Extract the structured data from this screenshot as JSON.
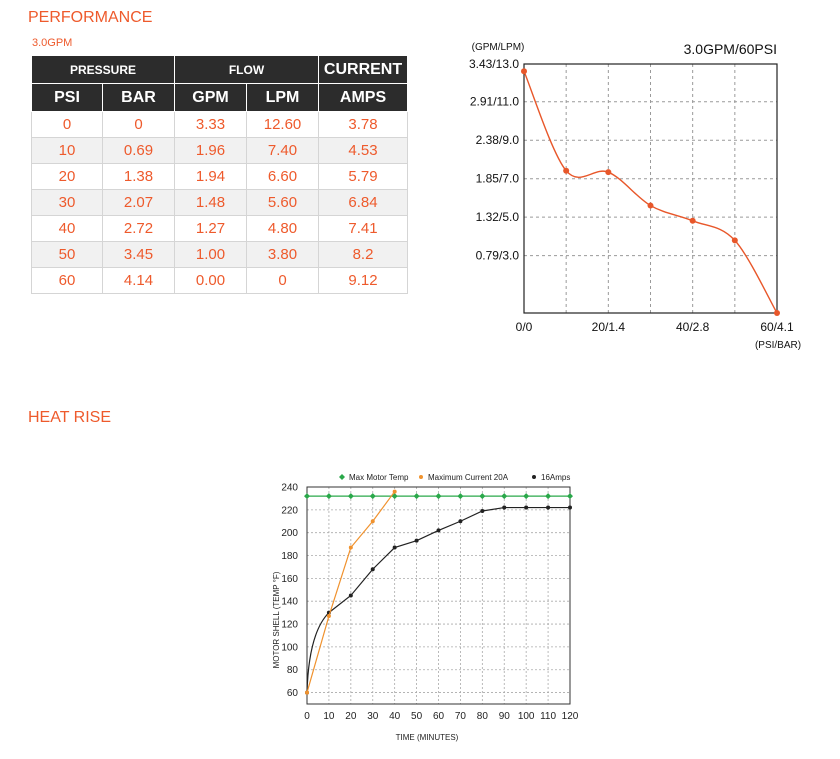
{
  "performance": {
    "heading": "PERFORMANCE",
    "subtitle": "3.0GPM",
    "table": {
      "group_headers": [
        "PRESSURE",
        "FLOW",
        "CURRENT"
      ],
      "columns": [
        "PSI",
        "BAR",
        "GPM",
        "LPM",
        "AMPS"
      ],
      "rows": [
        [
          "0",
          "0",
          "3.33",
          "12.60",
          "3.78"
        ],
        [
          "10",
          "0.69",
          "1.96",
          "7.40",
          "4.53"
        ],
        [
          "20",
          "1.38",
          "1.94",
          "6.60",
          "5.79"
        ],
        [
          "30",
          "2.07",
          "1.48",
          "5.60",
          "6.84"
        ],
        [
          "40",
          "2.72",
          "1.27",
          "4.80",
          "7.41"
        ],
        [
          "50",
          "3.45",
          "1.00",
          "3.80",
          "8.2"
        ],
        [
          "60",
          "4.14",
          "0.00",
          "0",
          "9.12"
        ]
      ]
    }
  },
  "heat_rise": {
    "heading": "HEAT RISE"
  },
  "chart_data": [
    {
      "type": "line",
      "title": "3.0GPM/60PSI",
      "ylabel": "(GPM/LPM)",
      "xlabel": "(PSI/BAR)",
      "x_ticks": [
        "0/0",
        "20/1.4",
        "40/2.8",
        "60/4.1"
      ],
      "y_ticks": [
        "0.79/3.0",
        "1.32/5.0",
        "1.85/7.0",
        "2.38/9.0",
        "2.91/11.0",
        "3.43/13.0"
      ],
      "xlim": [
        0,
        60
      ],
      "ylim": [
        0,
        3.43
      ],
      "grid": true,
      "line_color": "#e8572a",
      "series": [
        {
          "x": [
            0,
            10,
            20,
            30,
            40,
            50,
            60
          ],
          "y": [
            3.33,
            1.96,
            1.94,
            1.48,
            1.27,
            1.0,
            0.0
          ]
        }
      ]
    },
    {
      "type": "line",
      "xlabel": "TIME (MINUTES)",
      "ylabel": "MOTOR SHELL (TEMP °F)",
      "xlim": [
        0,
        120
      ],
      "ylim": [
        50,
        240
      ],
      "x_ticks": [
        0,
        10,
        20,
        30,
        40,
        50,
        60,
        70,
        80,
        90,
        100,
        110,
        120
      ],
      "y_ticks": [
        60,
        80,
        100,
        120,
        140,
        160,
        180,
        200,
        220,
        240
      ],
      "grid": true,
      "legend": "top",
      "series": [
        {
          "name": "Max Motor Temp",
          "color": "#2aa84a",
          "marker": "diamond",
          "x": [
            0,
            10,
            20,
            30,
            40,
            50,
            60,
            70,
            80,
            90,
            100,
            110,
            120
          ],
          "y": [
            232,
            232,
            232,
            232,
            232,
            232,
            232,
            232,
            232,
            232,
            232,
            232,
            232
          ]
        },
        {
          "name": "Maximum Current 20A",
          "color": "#f0922e",
          "marker": "circle",
          "x": [
            0,
            10,
            20,
            30,
            40
          ],
          "y": [
            60,
            127,
            187,
            210,
            236
          ]
        },
        {
          "name": "16Amps",
          "color": "#222222",
          "marker": "circle",
          "x": [
            0,
            10,
            20,
            30,
            40,
            50,
            60,
            70,
            80,
            90,
            100,
            110,
            120
          ],
          "y": [
            60,
            130,
            145,
            168,
            187,
            193,
            202,
            210,
            219,
            222,
            222,
            222,
            222
          ]
        }
      ]
    }
  ]
}
